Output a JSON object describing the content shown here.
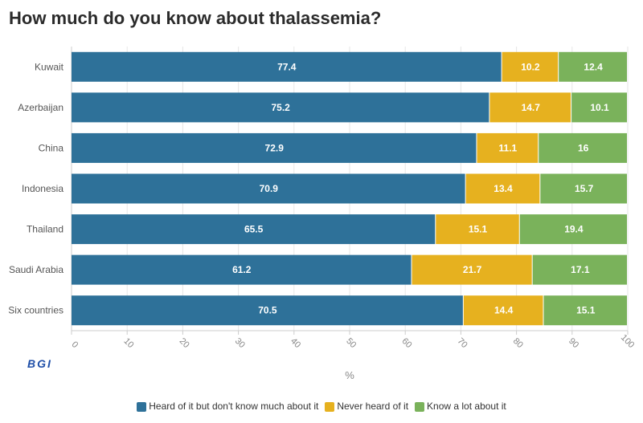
{
  "chart_data": {
    "type": "bar",
    "orientation": "horizontal",
    "stacked": true,
    "title": "How much do you know about thalassemia?",
    "categories": [
      "Kuwait",
      "Azerbaijan",
      "China",
      "Indonesia",
      "Thailand",
      "Saudi Arabia",
      "Six countries"
    ],
    "series": [
      {
        "name": "Heard of it but don't know much about it",
        "color": "#2e7199",
        "values": [
          77.4,
          75.2,
          72.9,
          70.9,
          65.5,
          61.2,
          70.5
        ]
      },
      {
        "name": "Never heard of it",
        "color": "#e6b11f",
        "values": [
          10.2,
          14.7,
          11.1,
          13.4,
          15.1,
          21.7,
          14.4
        ]
      },
      {
        "name": "Know a lot about it",
        "color": "#7ab25b",
        "values": [
          12.4,
          10.1,
          16,
          15.7,
          19.4,
          17.1,
          15.1
        ]
      }
    ],
    "xlabel": "%",
    "xlim": [
      0,
      100
    ],
    "xticks": [
      0,
      10,
      20,
      30,
      40,
      50,
      60,
      70,
      80,
      90,
      100
    ],
    "legend_position": "bottom"
  },
  "logo_text": "BGI"
}
